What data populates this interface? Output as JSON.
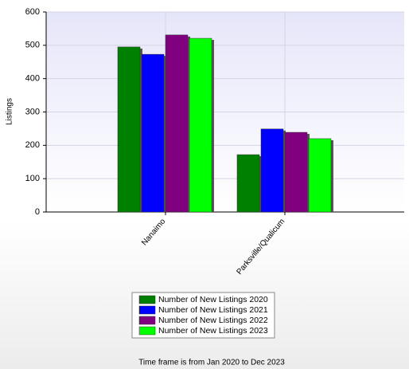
{
  "chart_data": {
    "type": "bar",
    "y_label": "Listings",
    "categories": [
      "Nanaimo",
      "Parksville/Qualicum"
    ],
    "series": [
      {
        "name": "Number of New Listings 2020",
        "color": "#008000",
        "values": [
          495,
          172
        ]
      },
      {
        "name": "Number of New Listings 2021",
        "color": "#0000ff",
        "values": [
          473,
          249
        ]
      },
      {
        "name": "Number of New Listings 2022",
        "color": "#800080",
        "values": [
          531,
          239
        ]
      },
      {
        "name": "Number of New Listings 2023",
        "color": "#00ff00",
        "values": [
          521,
          220
        ]
      }
    ],
    "ylim": [
      0,
      600
    ],
    "yticks": [
      0,
      100,
      200,
      300,
      400,
      500,
      600
    ],
    "grid": true,
    "footnote": "Time frame is from Jan 2020 to Dec 2023"
  }
}
